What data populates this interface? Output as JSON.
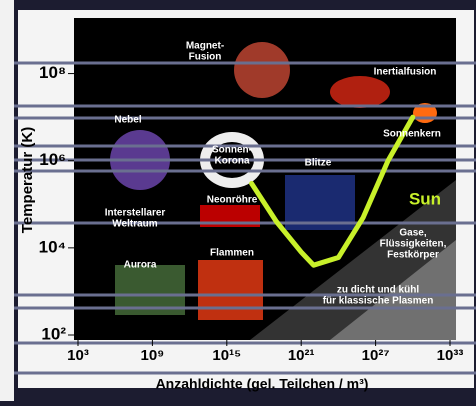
{
  "chart_data": {
    "type": "line",
    "xlabel": "Anzahldichte (gel. Teilchen / m³)",
    "ylabel": "Temperatur (K)",
    "log_x": true,
    "log_y": true,
    "xlim": [
      1000,
      1e+33
    ],
    "ylim": [
      100,
      1000000000.0
    ],
    "xticks": [
      {
        "value": 1000,
        "label": "10³"
      },
      {
        "value": 1000000000.0,
        "label": "10⁹"
      },
      {
        "value": 1000000000000000.0,
        "label": "10¹⁵"
      },
      {
        "value": 1e+21,
        "label": "10²¹"
      },
      {
        "value": 1e+27,
        "label": "10²⁷"
      },
      {
        "value": 1e+33,
        "label": "10³³"
      }
    ],
    "yticks": [
      {
        "value": 100,
        "label": "10²"
      },
      {
        "value": 10000,
        "label": "10⁴"
      },
      {
        "value": 1000000,
        "label": "10⁶"
      },
      {
        "value": 100000000,
        "label": "10⁸"
      }
    ],
    "series": [
      {
        "name": "Sun",
        "color": "#c8f02a",
        "x": [
          1e+17,
          1e+19,
          1e+21,
          1e+22,
          1e+24,
          1e+26,
          1e+28,
          1e+30
        ],
        "values": [
          300000,
          40000,
          8000,
          4000,
          6000,
          50000,
          1000000,
          10000000
        ]
      }
    ],
    "annotations": [
      {
        "text": [
          "Magnet-",
          "Fusion"
        ]
      },
      {
        "text": [
          "Inertialfusion"
        ]
      },
      {
        "text": [
          "Nebel"
        ]
      },
      {
        "text": [
          "Sonnen-",
          "Korona"
        ]
      },
      {
        "text": [
          "Blitze"
        ]
      },
      {
        "text": [
          "Sonnenkern"
        ]
      },
      {
        "text": [
          "Interstellarer",
          "Weltraum"
        ]
      },
      {
        "text": [
          "Neonröhre"
        ]
      },
      {
        "text": [
          "Gase,",
          "Flüssigkeiten,",
          "Festkörper"
        ]
      },
      {
        "text": [
          "Aurora"
        ]
      },
      {
        "text": [
          "Flammen"
        ]
      },
      {
        "text": [
          "zu dicht und kühl",
          "für klassische Plasmen"
        ]
      }
    ]
  }
}
